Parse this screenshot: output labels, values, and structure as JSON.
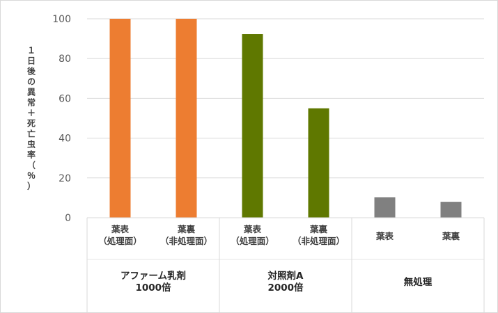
{
  "chart_data": {
    "type": "bar",
    "title": "",
    "ylabel": "１日後の異常＋死亡虫率（％）",
    "ylim": [
      0,
      100
    ],
    "yticks": [
      0,
      20,
      40,
      60,
      80,
      100
    ],
    "grid": true,
    "groups": [
      {
        "label_lines": [
          "アファーム乳剤",
          "1000倍"
        ],
        "color": "#ED7D31",
        "bars": [
          {
            "label_lines": [
              "葉表",
              "（処理面）"
            ],
            "value": 100
          },
          {
            "label_lines": [
              "葉裏",
              "（非処理面）"
            ],
            "value": 100
          }
        ]
      },
      {
        "label_lines": [
          "対照剤A",
          "2000倍"
        ],
        "color": "#5F7800",
        "bars": [
          {
            "label_lines": [
              "葉表",
              "（処理面）"
            ],
            "value": 92.3
          },
          {
            "label_lines": [
              "葉裏",
              "（非処理面）"
            ],
            "value": 55
          }
        ]
      },
      {
        "label_lines": [
          "無処理"
        ],
        "color": "#808080",
        "bars": [
          {
            "label_lines": [
              "葉表"
            ],
            "value": 10.3
          },
          {
            "label_lines": [
              "葉裏"
            ],
            "value": 8
          }
        ]
      }
    ]
  }
}
